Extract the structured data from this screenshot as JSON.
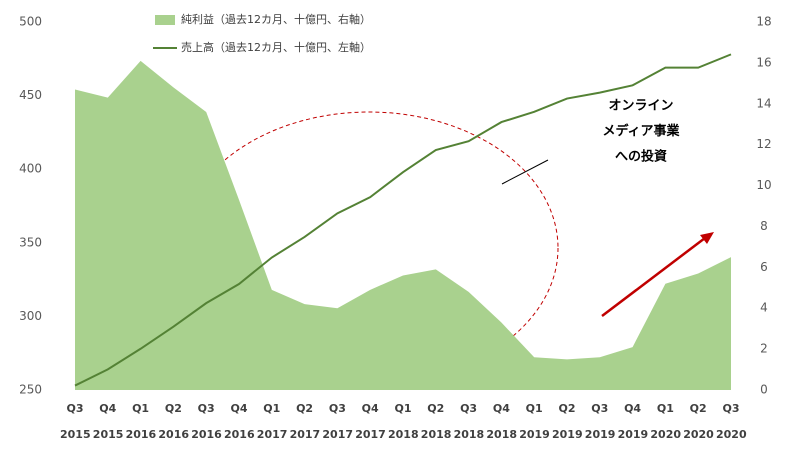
{
  "chart_data": {
    "type": "area-line",
    "categories": [
      "Q3 2015",
      "Q4 2015",
      "Q1 2016",
      "Q2 2016",
      "Q3 2016",
      "Q4 2016",
      "Q1 2017",
      "Q2 2017",
      "Q3 2017",
      "Q4 2017",
      "Q1 2018",
      "Q2 2018",
      "Q3 2018",
      "Q4 2018",
      "Q1 2019",
      "Q2 2019",
      "Q3 2019",
      "Q4 2019",
      "Q1 2020",
      "Q2 2020",
      "Q3 2020"
    ],
    "series": [
      {
        "name": "純利益（過去12カ月、十億円、右軸）",
        "type": "area",
        "axis": "y2",
        "color": "#a9d18e",
        "values": [
          14.7,
          14.3,
          16.1,
          14.8,
          13.6,
          9.3,
          4.9,
          4.2,
          4.0,
          4.9,
          5.6,
          5.9,
          4.8,
          3.3,
          1.6,
          1.5,
          1.6,
          2.1,
          5.2,
          5.7,
          6.5
        ]
      },
      {
        "name": "売上高（過去12カ月、十億円、左軸）",
        "type": "line",
        "axis": "y",
        "color": "#548235",
        "values": [
          253,
          264,
          278,
          293,
          309,
          322,
          340,
          354,
          370,
          381,
          398,
          413,
          419,
          432,
          439,
          448,
          452,
          457,
          469,
          469,
          478
        ]
      }
    ],
    "ylim": [
      250,
      500
    ],
    "yticks": [
      250,
      300,
      350,
      400,
      450,
      500
    ],
    "y2lim": [
      0,
      18
    ],
    "y2ticks": [
      0,
      2,
      4,
      6,
      8,
      10,
      12,
      14,
      16,
      18
    ],
    "annotation": [
      "オンライン",
      "メディア事業",
      "への投資"
    ]
  }
}
